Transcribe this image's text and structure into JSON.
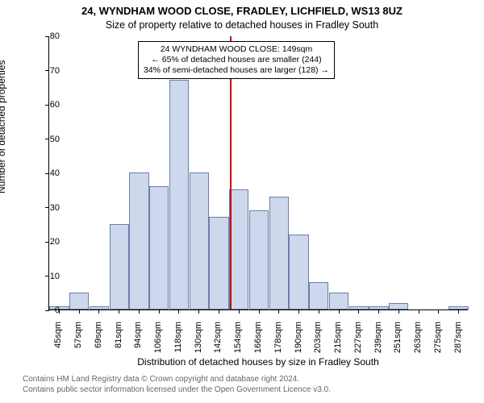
{
  "title_line1": "24, WYNDHAM WOOD CLOSE, FRADLEY, LICHFIELD, WS13 8UZ",
  "title_line2": "Size of property relative to detached houses in Fradley South",
  "y_axis_label": "Number of detached properties",
  "x_axis_label": "Distribution of detached houses by size in Fradley South",
  "footer_line1": "Contains HM Land Registry data © Crown copyright and database right 2024.",
  "footer_line2": "Contains public sector information licensed under the Open Government Licence v3.0.",
  "chart": {
    "type": "histogram",
    "ylim": [
      0,
      80
    ],
    "ytick_step": 10,
    "background_color": "#ffffff",
    "axis_color": "#000000",
    "bar_fill": "#cdd8ed",
    "bar_border": "#6a7fa8",
    "reference_line": {
      "x_index": 8.6,
      "color": "#cc0000",
      "width": 2
    },
    "annotation": {
      "lines": [
        "24 WYNDHAM WOOD CLOSE: 149sqm",
        "← 65% of detached houses are smaller (244)",
        "34% of semi-detached houses are larger (128) →"
      ],
      "border_color": "#000000",
      "bg": "#ffffff",
      "fontsize": 10.5
    },
    "x_categories": [
      "45sqm",
      "57sqm",
      "69sqm",
      "81sqm",
      "94sqm",
      "106sqm",
      "118sqm",
      "130sqm",
      "142sqm",
      "154sqm",
      "166sqm",
      "178sqm",
      "190sqm",
      "203sqm",
      "215sqm",
      "227sqm",
      "239sqm",
      "251sqm",
      "263sqm",
      "275sqm",
      "287sqm"
    ],
    "values": [
      1,
      5,
      1,
      25,
      40,
      36,
      67,
      40,
      27,
      35,
      29,
      33,
      22,
      8,
      5,
      1,
      1,
      2,
      0,
      0,
      1
    ]
  }
}
